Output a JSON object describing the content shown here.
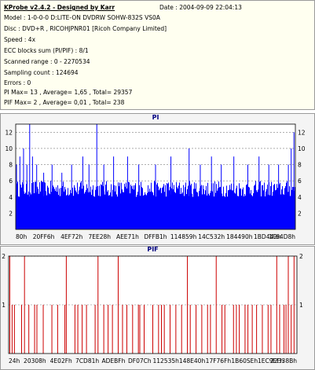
{
  "header": {
    "title": "KProbe v2.4.2 - Designed by Karr",
    "date": "Date : 2004-09-09 22:04:13"
  },
  "info_lines": [
    "Model : 1-0-0-0 D:LITE-ON DVDRW SOHW-832S  VS0A",
    "Disc : DVD+R , RICOHJPNR01 [Ricoh Company Limited]",
    "Speed : 4x",
    "ECC blocks sum (PI/PIF) : 8/1",
    "Scanned range : 0 - 2270534",
    "Sampling count : 124694",
    "Errors : 0",
    "PI Max= 13 , Average= 1,65 , Total= 29357",
    "PIF Max= 2 , Average= 0,01 , Total= 238"
  ],
  "colors": {
    "pi_fill": "#0000ff",
    "pif_line": "#cc0000",
    "grid": "#7f7f7f",
    "plot_bg": "#ffffff"
  },
  "chart_data": [
    {
      "type": "bar",
      "title": "PI",
      "ylim": [
        0,
        13
      ],
      "yticks": [
        2,
        4,
        6,
        8,
        10,
        12
      ],
      "xticks": [
        "80h",
        "20FF6h",
        "4EF72h",
        "7EE28h",
        "AEE71h",
        "DFFB1h",
        "114859h",
        "14C532h",
        "184490h",
        "1BD442h",
        "1F64D8h"
      ],
      "grid": true,
      "summary": {
        "max": 13,
        "average": 1.65,
        "total": 29357
      },
      "baseline_band": [
        4,
        6
      ],
      "spikes": [
        {
          "pos": 0.003,
          "value": 8
        },
        {
          "pos": 0.015,
          "value": 9
        },
        {
          "pos": 0.028,
          "value": 10
        },
        {
          "pos": 0.04,
          "value": 8
        },
        {
          "pos": 0.05,
          "value": 13
        },
        {
          "pos": 0.06,
          "value": 9
        },
        {
          "pos": 0.075,
          "value": 8
        },
        {
          "pos": 0.1,
          "value": 7
        },
        {
          "pos": 0.13,
          "value": 8
        },
        {
          "pos": 0.165,
          "value": 7
        },
        {
          "pos": 0.2,
          "value": 8
        },
        {
          "pos": 0.24,
          "value": 9
        },
        {
          "pos": 0.262,
          "value": 8
        },
        {
          "pos": 0.29,
          "value": 13
        },
        {
          "pos": 0.315,
          "value": 8
        },
        {
          "pos": 0.35,
          "value": 9
        },
        {
          "pos": 0.4,
          "value": 9
        },
        {
          "pos": 0.44,
          "value": 8
        },
        {
          "pos": 0.5,
          "value": 8
        },
        {
          "pos": 0.555,
          "value": 9
        },
        {
          "pos": 0.62,
          "value": 10
        },
        {
          "pos": 0.66,
          "value": 8
        },
        {
          "pos": 0.7,
          "value": 9
        },
        {
          "pos": 0.735,
          "value": 8
        },
        {
          "pos": 0.78,
          "value": 9
        },
        {
          "pos": 0.83,
          "value": 8
        },
        {
          "pos": 0.87,
          "value": 9
        },
        {
          "pos": 0.905,
          "value": 8
        },
        {
          "pos": 0.94,
          "value": 8
        },
        {
          "pos": 0.975,
          "value": 8
        },
        {
          "pos": 0.985,
          "value": 10
        },
        {
          "pos": 0.995,
          "value": 12
        }
      ]
    },
    {
      "type": "bar",
      "title": "PIF",
      "ylim": [
        0,
        2
      ],
      "yticks": [
        1,
        2
      ],
      "xticks": [
        "24h",
        "20308h",
        "4E02Fh",
        "7CD81h",
        "ADEBFh",
        "DF07Ch",
        "112535h",
        "148E40h",
        "17F76Fh",
        "1B60SEh",
        "1EC9EFh",
        "22338Bh"
      ],
      "grid": true,
      "summary": {
        "max": 2,
        "average": 0.01,
        "total": 238
      },
      "events": [
        {
          "pos": 0.004,
          "value": 2
        },
        {
          "pos": 0.012,
          "value": 1
        },
        {
          "pos": 0.02,
          "value": 1
        },
        {
          "pos": 0.045,
          "value": 1
        },
        {
          "pos": 0.055,
          "value": 2
        },
        {
          "pos": 0.07,
          "value": 1
        },
        {
          "pos": 0.09,
          "value": 1
        },
        {
          "pos": 0.098,
          "value": 1
        },
        {
          "pos": 0.12,
          "value": 1
        },
        {
          "pos": 0.15,
          "value": 1
        },
        {
          "pos": 0.17,
          "value": 1
        },
        {
          "pos": 0.195,
          "value": 1
        },
        {
          "pos": 0.2,
          "value": 2
        },
        {
          "pos": 0.23,
          "value": 1
        },
        {
          "pos": 0.24,
          "value": 1
        },
        {
          "pos": 0.255,
          "value": 1
        },
        {
          "pos": 0.27,
          "value": 1
        },
        {
          "pos": 0.3,
          "value": 1
        },
        {
          "pos": 0.31,
          "value": 2
        },
        {
          "pos": 0.33,
          "value": 1
        },
        {
          "pos": 0.345,
          "value": 1
        },
        {
          "pos": 0.36,
          "value": 1
        },
        {
          "pos": 0.38,
          "value": 2
        },
        {
          "pos": 0.395,
          "value": 1
        },
        {
          "pos": 0.41,
          "value": 1
        },
        {
          "pos": 0.43,
          "value": 1
        },
        {
          "pos": 0.45,
          "value": 1
        },
        {
          "pos": 0.455,
          "value": 1
        },
        {
          "pos": 0.47,
          "value": 1
        },
        {
          "pos": 0.5,
          "value": 1
        },
        {
          "pos": 0.52,
          "value": 1
        },
        {
          "pos": 0.53,
          "value": 1
        },
        {
          "pos": 0.54,
          "value": 1
        },
        {
          "pos": 0.56,
          "value": 1
        },
        {
          "pos": 0.58,
          "value": 1
        },
        {
          "pos": 0.6,
          "value": 1
        },
        {
          "pos": 0.62,
          "value": 2
        },
        {
          "pos": 0.63,
          "value": 1
        },
        {
          "pos": 0.65,
          "value": 1
        },
        {
          "pos": 0.67,
          "value": 1
        },
        {
          "pos": 0.69,
          "value": 1
        },
        {
          "pos": 0.7,
          "value": 1
        },
        {
          "pos": 0.72,
          "value": 2
        },
        {
          "pos": 0.74,
          "value": 1
        },
        {
          "pos": 0.75,
          "value": 1
        },
        {
          "pos": 0.78,
          "value": 1
        },
        {
          "pos": 0.79,
          "value": 1
        },
        {
          "pos": 0.8,
          "value": 1
        },
        {
          "pos": 0.82,
          "value": 1
        },
        {
          "pos": 0.83,
          "value": 1
        },
        {
          "pos": 0.845,
          "value": 1
        },
        {
          "pos": 0.86,
          "value": 1
        },
        {
          "pos": 0.88,
          "value": 1
        },
        {
          "pos": 0.9,
          "value": 1
        },
        {
          "pos": 0.91,
          "value": 1
        },
        {
          "pos": 0.93,
          "value": 2
        },
        {
          "pos": 0.94,
          "value": 1
        },
        {
          "pos": 0.955,
          "value": 1
        },
        {
          "pos": 0.962,
          "value": 1
        },
        {
          "pos": 0.97,
          "value": 2
        },
        {
          "pos": 0.98,
          "value": 1
        },
        {
          "pos": 0.99,
          "value": 2
        }
      ]
    }
  ]
}
